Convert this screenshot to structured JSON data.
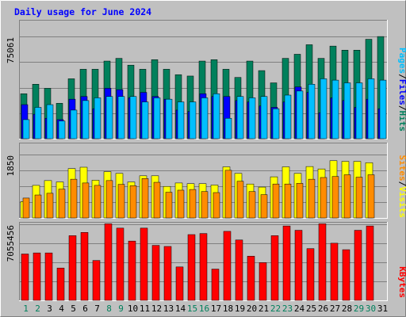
{
  "chart_data": [
    {
      "type": "bar",
      "panel": "hits-files-pages",
      "title": "Daily usage for June 2024",
      "categories": [
        "1",
        "2",
        "3",
        "4",
        "5",
        "6",
        "7",
        "8",
        "9",
        "10",
        "11",
        "12",
        "13",
        "14",
        "15",
        "16",
        "17",
        "18",
        "19",
        "20",
        "21",
        "22",
        "23",
        "24",
        "25",
        "26",
        "27",
        "28",
        "29",
        "30",
        "31"
      ],
      "weekend_days": [
        "1",
        "2",
        "8",
        "9",
        "15",
        "16",
        "22",
        "23",
        "29",
        "30"
      ],
      "y_tick_label": "75061",
      "ylim": [
        0,
        75061
      ],
      "grid": true,
      "series": [
        {
          "name": "Hits",
          "color": "#00805c",
          "values": [
            33000,
            40000,
            37000,
            26000,
            44000,
            51000,
            51000,
            57000,
            59000,
            54000,
            51000,
            58000,
            51000,
            47000,
            46000,
            57000,
            58000,
            51000,
            45000,
            57000,
            50000,
            41000,
            59000,
            62000,
            69000,
            59000,
            68000,
            65000,
            65000,
            73000,
            75000
          ]
        },
        {
          "name": "Files",
          "color": "#0000ff",
          "values": [
            25000,
            18000,
            15000,
            14000,
            29000,
            31000,
            22000,
            37000,
            36000,
            30000,
            34000,
            31000,
            29000,
            21000,
            20000,
            33000,
            31000,
            31000,
            28000,
            27000,
            24000,
            23000,
            27000,
            38000,
            34000,
            19000,
            30000,
            28000,
            23000,
            29000,
            22000
          ]
        },
        {
          "name": "Pages",
          "color": "#00bfff",
          "values": [
            14000,
            23000,
            25000,
            13000,
            21000,
            28000,
            30000,
            31000,
            31000,
            31000,
            27000,
            30000,
            29000,
            27000,
            27000,
            30000,
            33000,
            15000,
            31000,
            30000,
            31000,
            22000,
            32000,
            35000,
            40000,
            44000,
            43000,
            41000,
            41000,
            44000,
            43000
          ]
        }
      ]
    },
    {
      "type": "bar",
      "panel": "visits-sites",
      "y_tick_label": "1850",
      "ylim": [
        0,
        1850
      ],
      "grid": true,
      "series": [
        {
          "name": "Visits",
          "color": "#ffff00",
          "values": [
            480,
            950,
            1090,
            1050,
            1440,
            1480,
            1100,
            1350,
            1300,
            1050,
            1230,
            1230,
            920,
            1020,
            1000,
            1000,
            960,
            1490,
            1300,
            990,
            900,
            1200,
            1490,
            1300,
            1500,
            1430,
            1670,
            1650,
            1650,
            1610,
            0
          ]
        },
        {
          "name": "Sites",
          "color": "#ff8c00",
          "values": [
            580,
            670,
            720,
            840,
            1130,
            1020,
            950,
            1090,
            980,
            940,
            1150,
            1040,
            750,
            810,
            830,
            770,
            740,
            1390,
            1070,
            770,
            680,
            990,
            990,
            1010,
            1130,
            1180,
            1210,
            1260,
            1190,
            1260,
            0
          ]
        }
      ]
    },
    {
      "type": "bar",
      "panel": "kbytes",
      "y_tick_label": "7055456",
      "ylim": [
        0,
        7055456
      ],
      "grid": true,
      "series": [
        {
          "name": "KBytes",
          "color": "#ff0000",
          "values": [
            4300000,
            4400000,
            4400000,
            3000000,
            6000000,
            6300000,
            3700000,
            7100000,
            6700000,
            5500000,
            6700000,
            5100000,
            5000000,
            3100000,
            6100000,
            6200000,
            2900000,
            6400000,
            5600000,
            4100000,
            3500000,
            6000000,
            6900000,
            6500000,
            4800000,
            7100000,
            5300000,
            4700000,
            6500000,
            6900000,
            0
          ]
        }
      ]
    }
  ],
  "legend": {
    "sep": "/",
    "hits": "Hits",
    "files": "Files",
    "pages": "Pages",
    "visits": "Visits",
    "sites": "Sites",
    "kbytes": "KBytes"
  },
  "colors": {
    "background": "#c0c0c0",
    "panel": "#c0c0c0",
    "title": "#0000ff",
    "weekend_label": "#00805c",
    "weekday_label": "#000000"
  }
}
